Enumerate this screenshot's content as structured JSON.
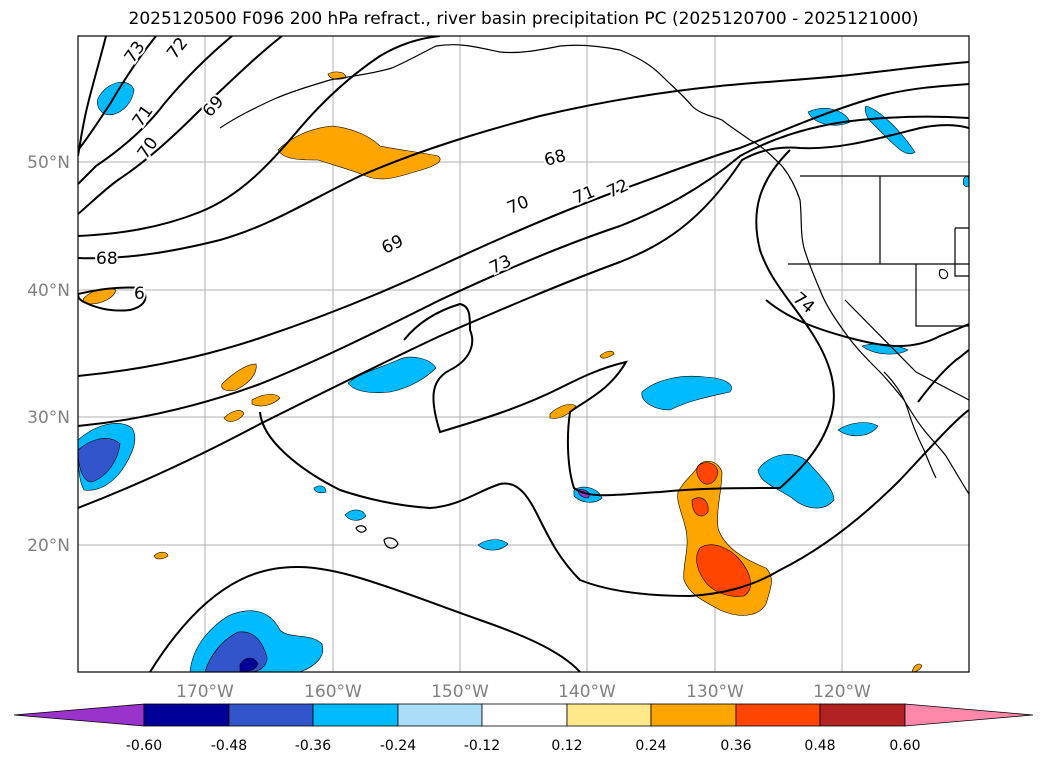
{
  "title": "2025120500 F096 200 hPa refract., river basin precipitation PC (2025120700 - 2025121000)",
  "map": {
    "latitude_labels": [
      "50°N",
      "40°N",
      "30°N",
      "20°N"
    ],
    "longitude_labels": [
      "170°W",
      "160°W",
      "150°W",
      "140°W",
      "130°W",
      "120°W"
    ],
    "contour_labels": [
      "73",
      "72",
      "71",
      "70",
      "69",
      "68",
      "68",
      "6",
      "69",
      "70",
      "71",
      "72",
      "73",
      "74"
    ],
    "contour_color": "#000000",
    "grid_color": "#b0b0b0"
  },
  "colorbar": {
    "tick_labels": [
      "-0.60",
      "-0.48",
      "-0.36",
      "-0.24",
      "-0.12",
      "0.12",
      "0.24",
      "0.36",
      "0.48",
      "0.60"
    ],
    "colors": [
      "#9933cc",
      "#000099",
      "#3355cc",
      "#00bbff",
      "#aaddf7",
      "#ffffff",
      "#ffe88a",
      "#ffa500",
      "#ff4500",
      "#b22222",
      "#ff88aa"
    ]
  }
}
